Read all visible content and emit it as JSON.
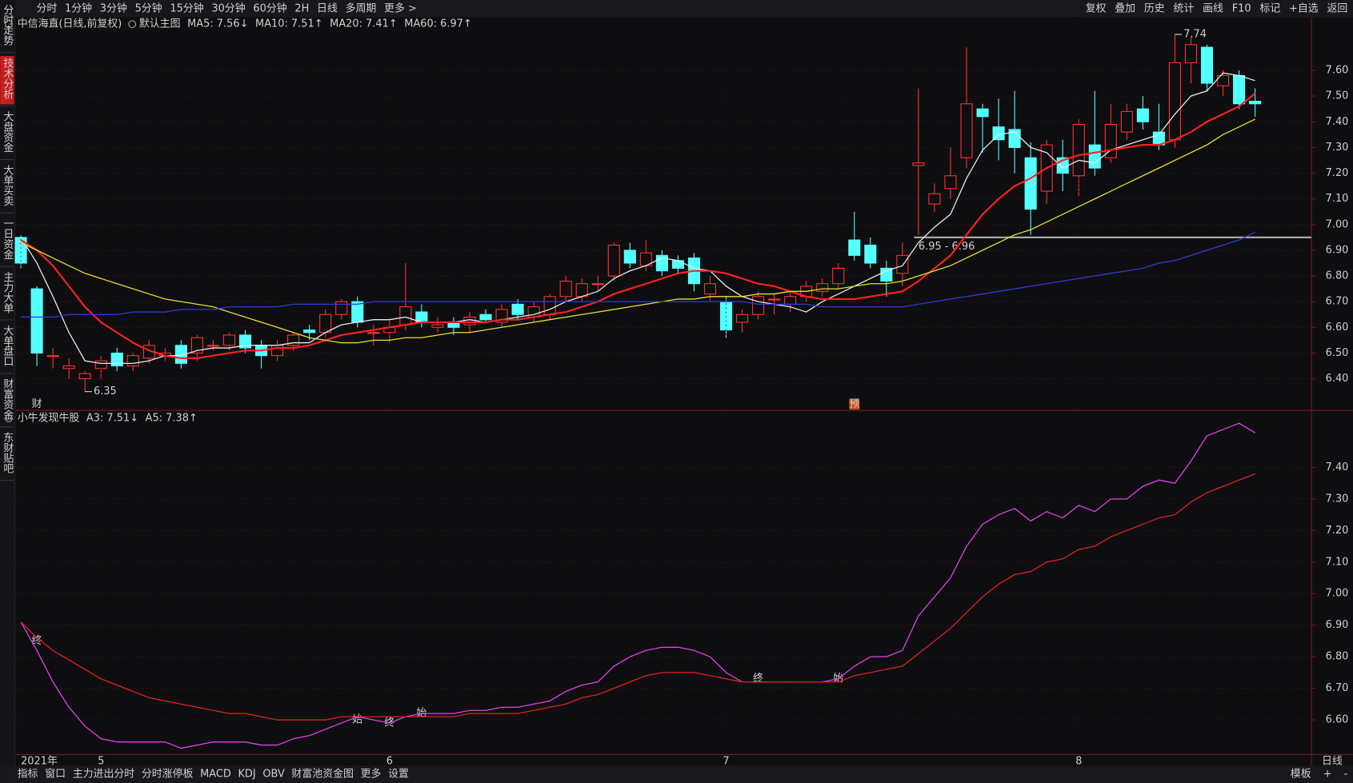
{
  "toolbar": {
    "left": [
      "分时",
      "1分钟",
      "3分钟",
      "5分钟",
      "15分钟",
      "30分钟",
      "60分钟",
      "2H",
      "日线",
      "多周期",
      "更多 >"
    ],
    "active": 8,
    "right": [
      "复权",
      "叠加",
      "历史",
      "统计",
      "画线",
      "F10",
      "标记",
      "+自选",
      "返回"
    ]
  },
  "sidebar": {
    "tabs": [
      "分时走势",
      "技术分析",
      "大盘资金",
      "大单买卖",
      "一日资金",
      "主力大单",
      "大单盘口",
      "财富资金",
      "东财贴吧"
    ],
    "active": 1
  },
  "bottom_bar": {
    "left": [
      "指标",
      "窗口",
      "主力进出分时",
      "分时涨停板",
      "MACD",
      "KDJ",
      "OBV",
      "财富池资金图",
      "更多",
      "设置"
    ],
    "active": 9,
    "right": [
      "模板",
      "+",
      "-"
    ],
    "period": "日线"
  },
  "chart_data": [
    {
      "type": "candlestick",
      "title": "中信海直(日线,前复权)",
      "subtitle": "默认主图",
      "up_color": "#ff3232",
      "down_color": "#54ffff",
      "open": [
        6.95,
        6.75,
        6.49,
        6.44,
        6.4,
        6.44,
        6.5,
        6.45,
        6.48,
        6.49,
        6.53,
        6.5,
        6.53,
        6.53,
        6.57,
        6.53,
        6.49,
        6.53,
        6.59,
        6.58,
        6.65,
        6.7,
        6.58,
        6.58,
        6.61,
        6.66,
        6.6,
        6.62,
        6.61,
        6.65,
        6.62,
        6.69,
        6.64,
        6.65,
        6.72,
        6.72,
        6.77,
        6.8,
        6.9,
        6.84,
        6.88,
        6.86,
        6.87,
        6.73,
        6.7,
        6.62,
        6.65,
        6.71,
        6.69,
        6.72,
        6.74,
        6.77,
        6.94,
        6.92,
        6.83,
        6.81,
        7.23,
        7.08,
        7.14,
        7.26,
        7.45,
        7.38,
        7.37,
        7.26,
        7.13,
        7.26,
        7.19,
        7.31,
        7.26,
        7.36,
        7.45,
        7.36,
        7.33,
        7.63,
        7.69,
        7.54,
        7.58,
        7.48
      ],
      "high": [
        6.96,
        6.76,
        6.52,
        6.48,
        6.43,
        6.49,
        6.52,
        6.5,
        6.55,
        6.52,
        6.55,
        6.57,
        6.55,
        6.58,
        6.59,
        6.55,
        6.55,
        6.58,
        6.61,
        6.67,
        6.71,
        6.72,
        6.61,
        6.63,
        6.85,
        6.69,
        6.64,
        6.64,
        6.66,
        6.67,
        6.69,
        6.71,
        6.7,
        6.73,
        6.8,
        6.79,
        6.8,
        6.93,
        6.93,
        6.94,
        6.9,
        6.88,
        6.89,
        6.8,
        6.72,
        6.67,
        6.74,
        6.73,
        6.74,
        6.78,
        6.79,
        6.85,
        7.05,
        6.95,
        6.86,
        6.93,
        7.53,
        7.16,
        7.3,
        7.69,
        7.47,
        7.49,
        7.52,
        7.32,
        7.33,
        7.33,
        7.41,
        7.52,
        7.47,
        7.47,
        7.5,
        7.47,
        7.74,
        7.73,
        7.7,
        7.6,
        7.6,
        7.53
      ],
      "low": [
        6.83,
        6.45,
        6.44,
        6.4,
        6.35,
        6.4,
        6.43,
        6.43,
        6.46,
        6.47,
        6.44,
        6.47,
        6.51,
        6.51,
        6.5,
        6.44,
        6.47,
        6.51,
        6.55,
        6.56,
        6.63,
        6.6,
        6.53,
        6.54,
        6.59,
        6.6,
        6.58,
        6.57,
        6.58,
        6.62,
        6.6,
        6.63,
        6.62,
        6.63,
        6.7,
        6.7,
        6.74,
        6.78,
        6.83,
        6.82,
        6.8,
        6.81,
        6.74,
        6.7,
        6.56,
        6.58,
        6.63,
        6.65,
        6.66,
        6.7,
        6.72,
        6.75,
        6.86,
        6.83,
        6.72,
        6.76,
        6.96,
        7.05,
        7.1,
        7.22,
        7.28,
        7.25,
        7.2,
        6.96,
        7.08,
        7.13,
        7.11,
        7.19,
        7.24,
        7.33,
        7.37,
        7.29,
        7.3,
        7.55,
        7.52,
        7.5,
        7.45,
        7.42
      ],
      "close": [
        6.85,
        6.5,
        6.49,
        6.45,
        6.42,
        6.47,
        6.45,
        6.49,
        6.53,
        6.5,
        6.46,
        6.56,
        6.53,
        6.57,
        6.52,
        6.49,
        6.53,
        6.57,
        6.58,
        6.65,
        6.7,
        6.62,
        6.58,
        6.6,
        6.68,
        6.62,
        6.61,
        6.6,
        6.64,
        6.63,
        6.67,
        6.65,
        6.68,
        6.72,
        6.78,
        6.77,
        6.77,
        6.92,
        6.85,
        6.89,
        6.82,
        6.83,
        6.77,
        6.77,
        6.59,
        6.65,
        6.72,
        6.71,
        6.72,
        6.76,
        6.77,
        6.83,
        6.88,
        6.85,
        6.78,
        6.88,
        7.24,
        7.12,
        7.19,
        7.47,
        7.42,
        7.33,
        7.3,
        7.06,
        7.31,
        7.2,
        7.39,
        7.22,
        7.39,
        7.44,
        7.4,
        7.31,
        7.63,
        7.7,
        7.55,
        7.58,
        7.47,
        7.47
      ],
      "series": [
        {
          "name": "MA5: 7.56↓",
          "color": "#e8e8e8",
          "values": [
            6.95,
            6.85,
            6.72,
            6.58,
            6.47,
            6.46,
            6.46,
            6.46,
            6.47,
            6.49,
            6.49,
            6.51,
            6.52,
            6.52,
            6.53,
            6.53,
            6.53,
            6.54,
            6.54,
            6.58,
            6.61,
            6.62,
            6.63,
            6.63,
            6.64,
            6.62,
            6.62,
            6.62,
            6.63,
            6.62,
            6.63,
            6.64,
            6.65,
            6.67,
            6.7,
            6.72,
            6.74,
            6.79,
            6.82,
            6.84,
            6.87,
            6.86,
            6.83,
            6.82,
            6.76,
            6.72,
            6.7,
            6.69,
            6.68,
            6.66,
            6.7,
            6.73,
            6.76,
            6.79,
            6.82,
            6.84,
            6.93,
            6.99,
            7.04,
            7.18,
            7.29,
            7.35,
            7.36,
            7.3,
            7.28,
            7.22,
            7.25,
            7.24,
            7.29,
            7.31,
            7.33,
            7.35,
            7.43,
            7.5,
            7.52,
            7.59,
            7.58,
            7.56
          ]
        },
        {
          "name": "MA10: 7.51↑",
          "color": "#ff2020",
          "values": [
            6.94,
            6.9,
            6.84,
            6.76,
            6.68,
            6.62,
            6.58,
            6.54,
            6.51,
            6.49,
            6.48,
            6.48,
            6.49,
            6.5,
            6.51,
            6.51,
            6.52,
            6.52,
            6.53,
            6.55,
            6.57,
            6.58,
            6.59,
            6.6,
            6.61,
            6.62,
            6.62,
            6.62,
            6.62,
            6.62,
            6.63,
            6.63,
            6.64,
            6.65,
            6.66,
            6.68,
            6.7,
            6.73,
            6.75,
            6.77,
            6.79,
            6.81,
            6.82,
            6.82,
            6.81,
            6.79,
            6.77,
            6.76,
            6.74,
            6.72,
            6.71,
            6.71,
            6.71,
            6.72,
            6.73,
            6.74,
            6.78,
            6.83,
            6.88,
            6.96,
            7.04,
            7.1,
            7.15,
            7.18,
            7.22,
            7.25,
            7.27,
            7.28,
            7.29,
            7.3,
            7.31,
            7.31,
            7.33,
            7.36,
            7.4,
            7.43,
            7.46,
            7.51
          ]
        },
        {
          "name": "MA20: 7.41↑",
          "color": "#e8e030",
          "values": [
            6.93,
            6.9,
            6.87,
            6.84,
            6.81,
            6.79,
            6.77,
            6.75,
            6.73,
            6.71,
            6.7,
            6.69,
            6.68,
            6.66,
            6.64,
            6.62,
            6.6,
            6.58,
            6.56,
            6.55,
            6.54,
            6.54,
            6.55,
            6.55,
            6.56,
            6.56,
            6.57,
            6.58,
            6.58,
            6.59,
            6.6,
            6.61,
            6.62,
            6.63,
            6.64,
            6.65,
            6.66,
            6.67,
            6.68,
            6.69,
            6.7,
            6.71,
            6.71,
            6.72,
            6.72,
            6.72,
            6.73,
            6.73,
            6.74,
            6.74,
            6.75,
            6.75,
            6.76,
            6.77,
            6.77,
            6.78,
            6.8,
            6.82,
            6.84,
            6.87,
            6.9,
            6.93,
            6.96,
            6.98,
            7.01,
            7.04,
            7.07,
            7.1,
            7.13,
            7.16,
            7.19,
            7.22,
            7.25,
            7.28,
            7.31,
            7.35,
            7.38,
            7.41
          ]
        },
        {
          "name": "MA60: 6.97↑",
          "color": "#2c3cd8",
          "values": [
            6.64,
            6.64,
            6.64,
            6.65,
            6.65,
            6.65,
            6.65,
            6.66,
            6.66,
            6.66,
            6.67,
            6.67,
            6.67,
            6.68,
            6.68,
            6.68,
            6.68,
            6.69,
            6.69,
            6.69,
            6.69,
            6.69,
            6.7,
            6.7,
            6.7,
            6.7,
            6.7,
            6.7,
            6.7,
            6.7,
            6.7,
            6.7,
            6.7,
            6.7,
            6.7,
            6.7,
            6.7,
            6.7,
            6.7,
            6.7,
            6.7,
            6.7,
            6.7,
            6.7,
            6.7,
            6.7,
            6.69,
            6.69,
            6.69,
            6.69,
            6.68,
            6.68,
            6.68,
            6.68,
            6.68,
            6.68,
            6.69,
            6.7,
            6.71,
            6.72,
            6.73,
            6.74,
            6.75,
            6.76,
            6.77,
            6.78,
            6.79,
            6.8,
            6.81,
            6.82,
            6.83,
            6.85,
            6.86,
            6.88,
            6.9,
            6.92,
            6.94,
            6.97
          ]
        }
      ],
      "ylim": [
        6.28,
        7.8
      ],
      "yticks": [
        {
          "value": 6.4,
          "label": "6.40"
        },
        {
          "value": 6.5,
          "label": "6.50"
        },
        {
          "value": 6.6,
          "label": "6.60"
        },
        {
          "value": 6.7,
          "label": "6.70"
        },
        {
          "value": 6.8,
          "label": "6.80"
        },
        {
          "value": 6.9,
          "label": "6.90"
        },
        {
          "value": 7.0,
          "label": "7.00"
        },
        {
          "value": 7.1,
          "label": "7.10"
        },
        {
          "value": 7.2,
          "label": "7.20"
        },
        {
          "value": 7.3,
          "label": "7.30"
        },
        {
          "value": 7.4,
          "label": "7.40"
        },
        {
          "value": 7.5,
          "label": "7.50"
        },
        {
          "value": 7.6,
          "label": "7.60"
        }
      ],
      "x_labels": [
        {
          "index": 0,
          "label": "2021年"
        },
        {
          "index": 5,
          "label": "5"
        },
        {
          "index": 23,
          "label": "6"
        },
        {
          "index": 44,
          "label": "7"
        },
        {
          "index": 66,
          "label": "8"
        }
      ],
      "annotations": [
        {
          "text": "7.74",
          "x": 72,
          "y": 7.74
        },
        {
          "text": "6.35",
          "x": 4,
          "y": 6.35
        }
      ],
      "hline": {
        "label": "6.95 - 6.96",
        "y": 6.95,
        "x_start": 56
      },
      "markers": [
        {
          "text": "财",
          "x": 1
        },
        {
          "text": "预",
          "x": 52
        }
      ]
    },
    {
      "type": "line",
      "title": "小牛发现牛股",
      "series": [
        {
          "name": "A3: 7.51↓",
          "color": "#e040e8",
          "values": [
            6.91,
            6.82,
            6.72,
            6.64,
            6.58,
            6.54,
            6.53,
            6.53,
            6.53,
            6.53,
            6.51,
            6.52,
            6.53,
            6.53,
            6.53,
            6.52,
            6.52,
            6.54,
            6.55,
            6.57,
            6.59,
            6.61,
            6.6,
            6.59,
            6.61,
            6.62,
            6.62,
            6.62,
            6.63,
            6.63,
            6.64,
            6.64,
            6.65,
            6.66,
            6.69,
            6.71,
            6.72,
            6.77,
            6.8,
            6.82,
            6.83,
            6.83,
            6.82,
            6.8,
            6.75,
            6.72,
            6.72,
            6.72,
            6.72,
            6.72,
            6.72,
            6.73,
            6.77,
            6.8,
            6.8,
            6.82,
            6.93,
            6.99,
            7.05,
            7.15,
            7.22,
            7.25,
            7.27,
            7.23,
            7.26,
            7.24,
            7.28,
            7.26,
            7.3,
            7.3,
            7.34,
            7.36,
            7.35,
            7.42,
            7.5,
            7.52,
            7.54,
            7.51
          ]
        },
        {
          "name": "A5: 7.38↑",
          "color": "#e02020",
          "values": [
            6.91,
            6.86,
            6.82,
            6.79,
            6.76,
            6.73,
            6.71,
            6.69,
            6.67,
            6.66,
            6.65,
            6.64,
            6.63,
            6.62,
            6.62,
            6.61,
            6.6,
            6.6,
            6.6,
            6.6,
            6.61,
            6.61,
            6.61,
            6.61,
            6.61,
            6.61,
            6.61,
            6.61,
            6.62,
            6.62,
            6.62,
            6.62,
            6.63,
            6.64,
            6.65,
            6.67,
            6.68,
            6.7,
            6.72,
            6.74,
            6.75,
            6.75,
            6.75,
            6.74,
            6.73,
            6.72,
            6.72,
            6.72,
            6.72,
            6.72,
            6.72,
            6.72,
            6.74,
            6.75,
            6.76,
            6.77,
            6.81,
            6.85,
            6.89,
            6.94,
            6.99,
            7.03,
            7.06,
            7.07,
            7.1,
            7.11,
            7.14,
            7.15,
            7.18,
            7.2,
            7.22,
            7.24,
            7.25,
            7.29,
            7.32,
            7.34,
            7.36,
            7.38
          ]
        }
      ],
      "ylim": [
        6.49,
        7.575
      ],
      "yticks": [
        {
          "value": 6.6,
          "label": "6.60"
        },
        {
          "value": 6.7,
          "label": "6.70"
        },
        {
          "value": 6.8,
          "label": "6.80"
        },
        {
          "value": 6.9,
          "label": "6.90"
        },
        {
          "value": 7.0,
          "label": "7.00"
        },
        {
          "value": 7.1,
          "label": "7.10"
        },
        {
          "value": 7.2,
          "label": "7.20"
        },
        {
          "value": 7.3,
          "label": "7.30"
        },
        {
          "value": 7.4,
          "label": "7.40"
        }
      ],
      "annotations": [
        {
          "text": "终",
          "x": 1,
          "y": 6.85
        },
        {
          "text": "始",
          "x": 21,
          "y": 6.6
        },
        {
          "text": "终",
          "x": 23,
          "y": 6.59
        },
        {
          "text": "始",
          "x": 25,
          "y": 6.62
        },
        {
          "text": "终",
          "x": 46,
          "y": 6.73
        },
        {
          "text": "始",
          "x": 51,
          "y": 6.73
        }
      ]
    }
  ]
}
